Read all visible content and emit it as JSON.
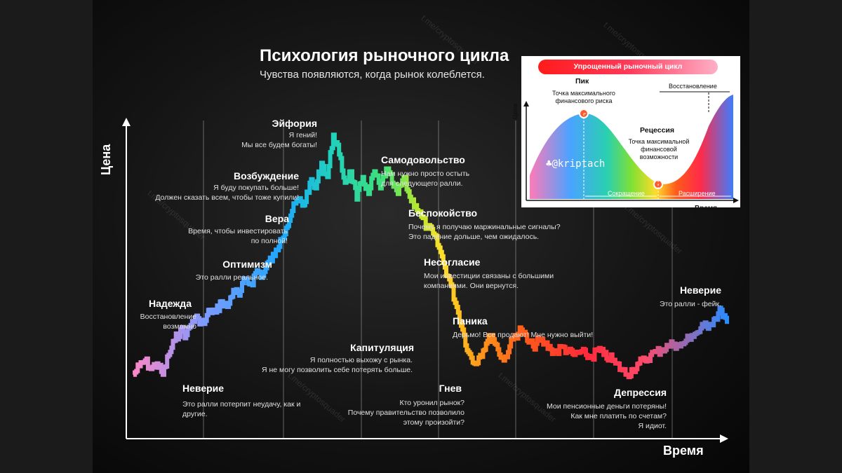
{
  "title": "Психология рыночного цикла",
  "subtitle": "Чувства появляются, когда рынок колеблется.",
  "axes": {
    "y": "Цена",
    "x": "Время"
  },
  "watermark": "t.me/cryptosquader",
  "stages": [
    {
      "key": "hope",
      "name": "Надежда",
      "text": [
        "Восстановление",
        "возможно"
      ]
    },
    {
      "key": "disbelief1",
      "name": "Неверие",
      "text": [
        "Это ралли потерпит неудачу, как и",
        "другие."
      ]
    },
    {
      "key": "optimism",
      "name": "Оптимизм",
      "text": [
        "Это ралли реальное."
      ]
    },
    {
      "key": "belief",
      "name": "Вера",
      "text": [
        "Время, чтобы инвестировать",
        "по полной!"
      ]
    },
    {
      "key": "thrill",
      "name": "Возбуждение",
      "text": [
        "Я буду покупать больше!",
        "Должен сказать всем, чтобы тоже купили!"
      ]
    },
    {
      "key": "euphoria",
      "name": "Эйфория",
      "text": [
        "Я гений!",
        "Мы все будем богаты!"
      ]
    },
    {
      "key": "complacency",
      "name": "Самодовольство",
      "text": [
        "Нам нужно просто остыть",
        "для следующего ралли."
      ]
    },
    {
      "key": "anxiety",
      "name": "Беспокойство",
      "text": [
        "Почему я получаю маржинальные сигналы?",
        "Это падение дольше, чем ожидалось."
      ]
    },
    {
      "key": "denial",
      "name": "Несогласие",
      "text": [
        "Мои инвестиции связаны с большими",
        "компаниями. Они вернутся."
      ]
    },
    {
      "key": "panic",
      "name": "Паника",
      "text": [
        "Дерьмо! Все продают! Мне нужно выйти!"
      ]
    },
    {
      "key": "capitulation",
      "name": "Капитуляция",
      "text": [
        "Я полностью выхожу с рынка.",
        "Я не могу позволить себе потерять больше."
      ]
    },
    {
      "key": "anger",
      "name": "Гнев",
      "text": [
        "Кто уронил рынок?",
        "Почему правительство позволило",
        "этому произойти?"
      ]
    },
    {
      "key": "depression",
      "name": "Депрессия",
      "text": [
        "Мои пенсионные деньги потеряны!",
        "Как мне платить по счетам?",
        "Я идиот."
      ]
    },
    {
      "key": "disbelief2",
      "name": "Неверие",
      "text": [
        "Это ралли - фейк."
      ]
    }
  ],
  "inset": {
    "label": "Упрощенный рыночный цикл",
    "peak_title": "Пик",
    "peak_text": [
      "Точка максимального",
      "финансового риска"
    ],
    "recession_title": "Рецессия",
    "recession_text": [
      "Точка максимальной",
      "финансовой",
      "возможности"
    ],
    "recovery": "Восстановление",
    "contraction": "Сокращение",
    "expansion": "Расширение",
    "y_label": "Цена",
    "x_label": "Время",
    "handle": "@kriptach"
  },
  "chart_data": {
    "type": "line",
    "title": "Психология рыночного цикла",
    "xlabel": "Время",
    "ylabel": "Цена",
    "series": [
      {
        "values": [
          0.1,
          0.13,
          0.15,
          0.12,
          0.14,
          0.1,
          0.17,
          0.22,
          0.26,
          0.24,
          0.29,
          0.3,
          0.28,
          0.33,
          0.32,
          0.36,
          0.34,
          0.4,
          0.38,
          0.44,
          0.42,
          0.47,
          0.45,
          0.5,
          0.52,
          0.58,
          0.62,
          0.68,
          0.72,
          0.7,
          0.78,
          0.76,
          0.85,
          0.8,
          0.95,
          0.88,
          0.78,
          0.82,
          0.72,
          0.8,
          0.74,
          0.82,
          0.76,
          0.83,
          0.78,
          0.74,
          0.8,
          0.73,
          0.7,
          0.66,
          0.62,
          0.6,
          0.55,
          0.48,
          0.42,
          0.34,
          0.26,
          0.18,
          0.14,
          0.17,
          0.21,
          0.24,
          0.19,
          0.15,
          0.2,
          0.24,
          0.26,
          0.22,
          0.2,
          0.22,
          0.21,
          0.19,
          0.18,
          0.2,
          0.18,
          0.17,
          0.18,
          0.17,
          0.16,
          0.19,
          0.17,
          0.16,
          0.14,
          0.12,
          0.1,
          0.12,
          0.14,
          0.15,
          0.17,
          0.18,
          0.19,
          0.2,
          0.21,
          0.2,
          0.22,
          0.24,
          0.25,
          0.27,
          0.28,
          0.3,
          0.33,
          0.28
        ]
      }
    ]
  }
}
